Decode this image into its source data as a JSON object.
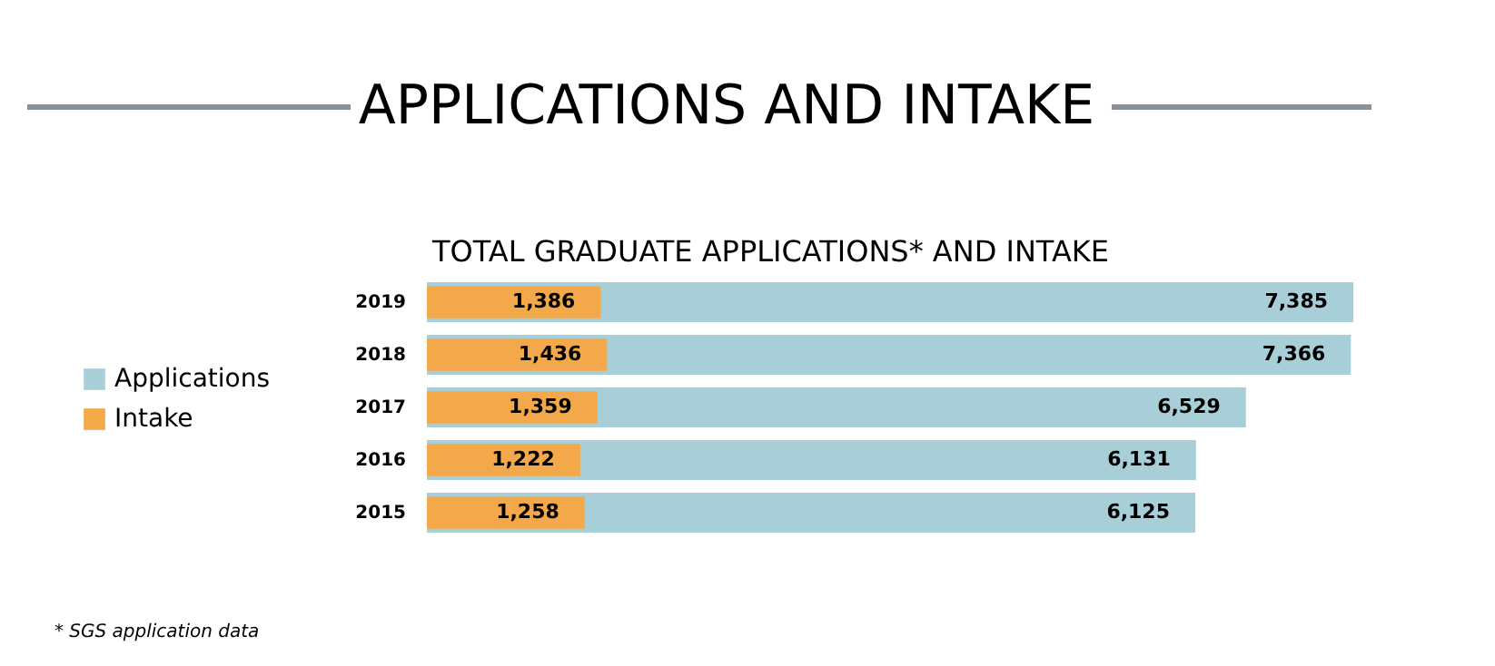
{
  "chart_data": {
    "type": "bar",
    "orientation": "horizontal",
    "title": "APPLICATIONS AND INTAKE",
    "subtitle": "TOTAL GRADUATE APPLICATIONS* AND INTAKE",
    "categories": [
      "2019",
      "2018",
      "2017",
      "2016",
      "2015"
    ],
    "series": [
      {
        "name": "Applications",
        "color": "#a8cfd8",
        "values": [
          7385,
          7366,
          6529,
          6131,
          6125
        ],
        "value_labels": [
          "7,385",
          "7,366",
          "6,529",
          "6,131",
          "6,125"
        ]
      },
      {
        "name": "Intake",
        "color": "#f3a84a",
        "values": [
          1386,
          1436,
          1359,
          1222,
          1258
        ],
        "value_labels": [
          "1,386",
          "1,436",
          "1,359",
          "1,222",
          "1,258"
        ]
      }
    ],
    "stacked": false,
    "legend": "left",
    "grid": false,
    "annotations": [
      "* SGS application data"
    ]
  }
}
